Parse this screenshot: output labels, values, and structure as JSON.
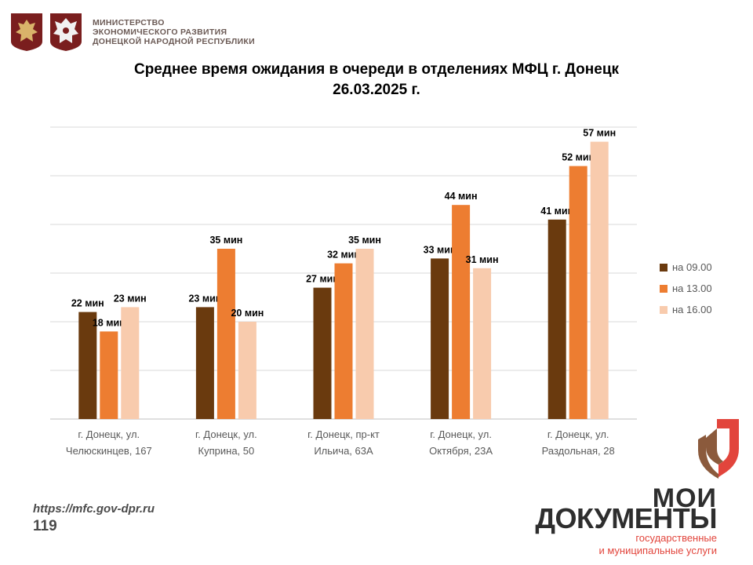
{
  "header": {
    "ministry_line1": "МИНИСТЕРСТВО",
    "ministry_line2": "ЭКОНОМИЧЕСКОГО РАЗВИТИЯ",
    "ministry_line3": "ДОНЕЦКОЙ НАРОДНОЙ РЕСПУБЛИКИ"
  },
  "footer": {
    "url": "https://mfc.gov-dpr.ru",
    "page_number": "119"
  },
  "brand": {
    "line1": "МОИ",
    "line2": "ДОКУМЕНТЫ",
    "sub1": "государственные",
    "sub2": "и муниципальные услуги"
  },
  "colors": {
    "series1": "#6a3a0e",
    "series2": "#ed7d31",
    "series3": "#f8cbad",
    "logo_red": "#e2453c",
    "logo_brown": "#8b5a3c"
  },
  "chart_data": {
    "type": "bar",
    "title_line1": "Среднее время ожидания в очереди в отделениях МФЦ г. Донецк",
    "title_line2": "26.03.2025 г.",
    "categories": [
      [
        "г. Донецк, ул.",
        "Челюскинцев, 167"
      ],
      [
        "г. Донецк, ул.",
        "Куприна, 50"
      ],
      [
        "г. Донецк, пр-кт",
        "Ильича, 63А"
      ],
      [
        "г. Донецк, ул.",
        "Октября, 23А"
      ],
      [
        "г. Донецк, ул.",
        "Раздольная, 28"
      ]
    ],
    "series": [
      {
        "name": "на 09.00",
        "values": [
          22,
          23,
          27,
          33,
          41
        ]
      },
      {
        "name": "на 13.00",
        "values": [
          18,
          35,
          32,
          44,
          52
        ]
      },
      {
        "name": "на 16.00",
        "values": [
          23,
          20,
          35,
          31,
          57
        ]
      }
    ],
    "label_suffix": " мин",
    "ylim": [
      0,
      60
    ],
    "grid": true,
    "legend_position": "right"
  }
}
